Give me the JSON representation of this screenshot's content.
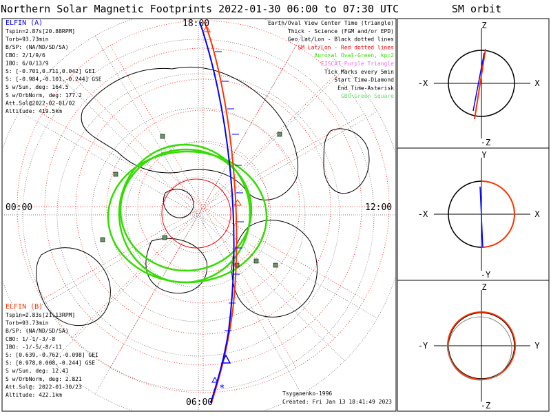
{
  "title": "Northern Solar Magnetic Footprints 2022-01-30 06:00 to 07:30 UTC",
  "orbit_title": "SM orbit",
  "map": {
    "mlt_top": "18:00",
    "mlt_left": "00:00",
    "mlt_right": "12:00",
    "mlt_bottom": "06:00",
    "credit": "Tsyganenko-1996",
    "created": "Created: Fri Jan 13 18:41:49 2023"
  },
  "legend": [
    {
      "text": "Earth/Oval View Center Time (triangle)",
      "color": "#000000"
    },
    {
      "text": "Thick - Science (FGM and/or EPD)",
      "color": "#000000"
    },
    {
      "text": "Geo Lat/Lon - Black dotted lines",
      "color": "#000000"
    },
    {
      "text": "SM Lat/Lon - Red dotted lines",
      "color": "#ff0000"
    },
    {
      "text": "Auroral Oval-Green, kp=2",
      "color": "#33dd00"
    },
    {
      "text": "EISCAT-Purple Triangle",
      "color": "#ee66ee"
    },
    {
      "text": "Tick Marks every 5min",
      "color": "#000000"
    },
    {
      "text": "Start Time-Diamond",
      "color": "#000000"
    },
    {
      "text": "End Time-Asterisk",
      "color": "#000000"
    },
    {
      "text": "GBO-Green Square",
      "color": "#66dd66"
    }
  ],
  "probe_a": {
    "name": "ELFIN (A)",
    "color": "#0000ff",
    "lines": [
      "Tspin=2.87s[20.88RPM]",
      "Torb=93.73min",
      "B/SP: (NA/ND/SD/SA)",
      "CBO: 2/1/9/6",
      "IBO: 6/0/13/9",
      "S: [-0.701,0.711,0.042] GEI",
      "S: [-0.984,-0.101,-0.244] GSE",
      "S w/Sun, deg: 164.5",
      "S w/OrbNorm, deg: 177.2",
      "Att.Sol@2022-02-01/02",
      "Altitude: 419.5km"
    ]
  },
  "probe_b": {
    "name": "ELFIN (B)",
    "color": "#ff3300",
    "lines": [
      "Tspin=2.83s[21.13RPM]",
      "Torb=93.73min",
      "B/SP: (NA/ND/SD/SA)",
      "CBO: 1/-1/-3/-8",
      "IBO: -1/-5/-8/-11",
      "S: [0.639,-0.762,-0.098] GEI",
      "S: [0.978,0.008,-0.244] GSE",
      "S w/Sun, deg: 12.41",
      "S w/OrbNorm, deg: 2.821",
      "Att.Sol@: 2022-01-30/23",
      "Altitude: 422.1km"
    ]
  },
  "orbit_panels": [
    {
      "top": "Z",
      "bottom": "-Z",
      "left": "-X",
      "right": "X"
    },
    {
      "top": "Y",
      "bottom": "-Y",
      "left": "-X",
      "right": "X"
    },
    {
      "top": "Z",
      "bottom": "-Z",
      "left": "-Y",
      "right": "Y"
    }
  ]
}
